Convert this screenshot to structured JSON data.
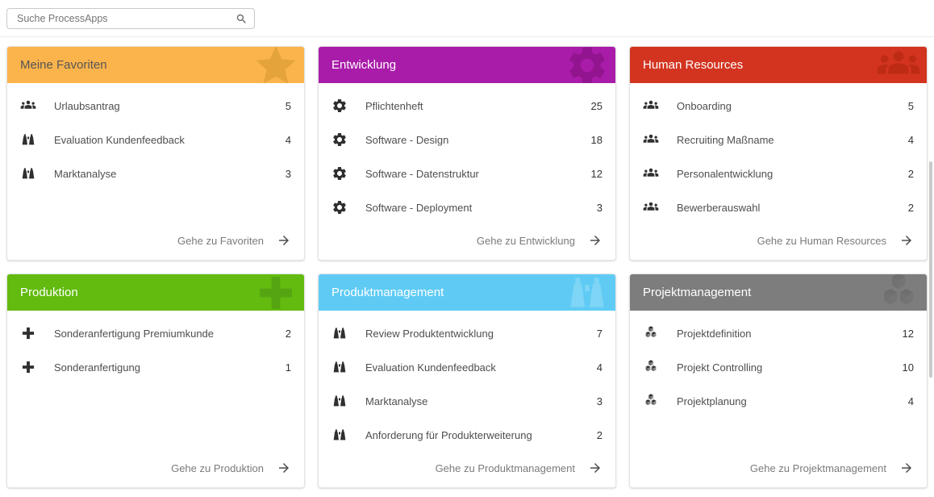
{
  "search": {
    "placeholder": "Suche ProcessApps",
    "icon": "search"
  },
  "cards": [
    {
      "title": "Meine Favoriten",
      "header_color": "#FBB44C",
      "header_icon_color": "#E4A33B",
      "title_color": "#545454",
      "icon": "star",
      "footer_label": "Gehe zu Favoriten",
      "items": [
        {
          "icon": "groups",
          "label": "Urlaubsantrag",
          "count": "5"
        },
        {
          "icon": "binoculars",
          "label": "Evaluation Kundenfeedback",
          "count": "4"
        },
        {
          "icon": "binoculars",
          "label": "Marktanalyse",
          "count": "3"
        }
      ]
    },
    {
      "title": "Entwicklung",
      "header_color": "#A91CA9",
      "header_icon_color": "#92158F",
      "title_color": "#FFFFFF",
      "icon": "gear",
      "footer_label": "Gehe zu Entwicklung",
      "items": [
        {
          "icon": "gear",
          "label": "Pflichtenheft",
          "count": "25"
        },
        {
          "icon": "gear",
          "label": "Software - Design",
          "count": "18"
        },
        {
          "icon": "gear",
          "label": "Software - Datenstruktur",
          "count": "12"
        },
        {
          "icon": "gear",
          "label": "Software - Deployment",
          "count": "3"
        }
      ]
    },
    {
      "title": "Human Resources",
      "header_color": "#D23420",
      "header_icon_color": "#BE2B15",
      "title_color": "#FFFFFF",
      "icon": "groups",
      "footer_label": "Gehe zu Human Resources",
      "items": [
        {
          "icon": "groups",
          "label": "Onboarding",
          "count": "5"
        },
        {
          "icon": "groups",
          "label": "Recruiting Maßname",
          "count": "4"
        },
        {
          "icon": "groups",
          "label": "Personalentwicklung",
          "count": "2"
        },
        {
          "icon": "groups",
          "label": "Bewerberauswahl",
          "count": "2"
        }
      ]
    },
    {
      "title": "Produktion",
      "header_color": "#62BB0E",
      "header_icon_color": "#55A513",
      "title_color": "#FFFFFF",
      "icon": "plus",
      "footer_label": "Gehe zu Produktion",
      "items": [
        {
          "icon": "plus",
          "label": "Sonderanfertigung Premiumkunde",
          "count": "2"
        },
        {
          "icon": "plus",
          "label": "Sonderanfertigung",
          "count": "1"
        }
      ]
    },
    {
      "title": "Produktmanagement",
      "header_color": "#5FCBF5",
      "header_icon_color": "#7ED5F5",
      "title_color": "#FFFFFF",
      "icon": "binoculars",
      "footer_label": "Gehe zu Produktmanagement",
      "items": [
        {
          "icon": "binoculars",
          "label": "Review Produktentwicklung",
          "count": "7"
        },
        {
          "icon": "binoculars",
          "label": "Evaluation Kundenfeedback",
          "count": "4"
        },
        {
          "icon": "binoculars",
          "label": "Marktanalyse",
          "count": "3"
        },
        {
          "icon": "binoculars",
          "label": "Anforderung für Produkterweiterung",
          "count": "2"
        }
      ]
    },
    {
      "title": "Projektmanagement",
      "header_color": "#7D7D7D",
      "header_icon_color": "#6F6F6F",
      "title_color": "#FFFFFF",
      "icon": "cubes",
      "footer_label": "Gehe zu Projektmanagement",
      "items": [
        {
          "icon": "cubes",
          "label": "Projektdefinition",
          "count": "12"
        },
        {
          "icon": "cubes",
          "label": "Projekt Controlling",
          "count": "10"
        },
        {
          "icon": "cubes",
          "label": "Projektplanung",
          "count": "4"
        }
      ]
    }
  ]
}
